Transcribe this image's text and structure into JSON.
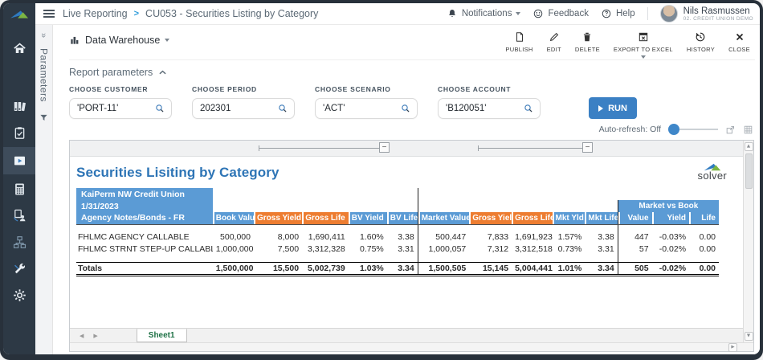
{
  "topbar": {
    "breadcrumb": {
      "section": "Live Reporting",
      "separator": ">",
      "page": "CU053 - Securities Listing by Category"
    },
    "notifications_label": "Notifications",
    "feedback_label": "Feedback",
    "help_label": "Help",
    "user": {
      "name": "Nils Rasmussen",
      "org": "02. Credit Union Demo"
    }
  },
  "sidebar": {
    "icons": [
      "home",
      "report-library",
      "tasks-clipboard",
      "live-reporting",
      "budgeting-calculator",
      "document-person",
      "process-nodes",
      "admin-tools",
      "settings-gear"
    ],
    "active": "live-reporting"
  },
  "context_bar": {
    "source_label": "Data Warehouse"
  },
  "toolbar": {
    "items": [
      {
        "label": "PUBLISH",
        "icon": "publish"
      },
      {
        "label": "EDIT",
        "icon": "edit"
      },
      {
        "label": "DELETE",
        "icon": "delete"
      },
      {
        "label": "EXPORT TO EXCEL",
        "icon": "export",
        "menu": true
      },
      {
        "label": "HISTORY",
        "icon": "history"
      },
      {
        "label": "CLOSE",
        "icon": "close"
      }
    ]
  },
  "parameters": {
    "section_label": "Report parameters",
    "strip_label": "Parameters",
    "fields": [
      {
        "label": "CHOOSE CUSTOMER",
        "value": "'PORT-11'"
      },
      {
        "label": "CHOOSE PERIOD",
        "value": "202301"
      },
      {
        "label": "CHOOSE SCENARIO",
        "value": "'ACT'"
      },
      {
        "label": "CHOOSE ACCOUNT",
        "value": "'B120051'"
      }
    ],
    "run_label": "RUN"
  },
  "autorefresh": {
    "label": "Auto-refresh: Off"
  },
  "report": {
    "title": "Securities Lisiting by Category",
    "logo_text": "solver",
    "header_block": [
      "KaiPerm NW Credit Union",
      "1/31/2023"
    ],
    "row_label_header": "Agency Notes/Bonds - FR",
    "group_header": "Market vs Book",
    "columns": [
      {
        "label": "Book Value",
        "fill": "blue"
      },
      {
        "label": "Gross Yield",
        "fill": "orange"
      },
      {
        "label": "Gross Life",
        "fill": "orange"
      },
      {
        "label": "BV Yield",
        "fill": "blue"
      },
      {
        "label": "BV Life",
        "fill": "blue"
      },
      {
        "label": "Market Value",
        "fill": "blue",
        "sep": true
      },
      {
        "label": "Gross Yield",
        "fill": "orange"
      },
      {
        "label": "Gross Life",
        "fill": "orange"
      },
      {
        "label": "Mkt Yld",
        "fill": "blue"
      },
      {
        "label": "Mkt Life",
        "fill": "blue"
      },
      {
        "label": "Value",
        "fill": "blue",
        "sep": true
      },
      {
        "label": "Yield",
        "fill": "blue"
      },
      {
        "label": "Life",
        "fill": "blue"
      }
    ],
    "rows": [
      {
        "name": "FHLMC AGENCY CALLABLE",
        "values": [
          "500,000",
          "8,000",
          "1,690,411",
          "1.60%",
          "3.38",
          "500,447",
          "7,833",
          "1,691,923",
          "1.57%",
          "3.38",
          "447",
          "-0.03%",
          "0.00"
        ]
      },
      {
        "name": "FHLMC STRNT STEP-UP CALLABLE",
        "values": [
          "1,000,000",
          "7,500",
          "3,312,328",
          "0.75%",
          "3.31",
          "1,000,057",
          "7,312",
          "3,312,518",
          "0.73%",
          "3.31",
          "57",
          "-0.02%",
          "0.00"
        ]
      }
    ],
    "totals": {
      "name": "Totals",
      "values": [
        "1,500,000",
        "15,500",
        "5,002,739",
        "1.03%",
        "3.34",
        "1,500,505",
        "15,145",
        "5,004,441",
        "1.01%",
        "3.34",
        "505",
        "-0.02%",
        "0.00"
      ]
    },
    "outline_collapse_glyph": "−",
    "sheet_tab": "Sheet1"
  }
}
